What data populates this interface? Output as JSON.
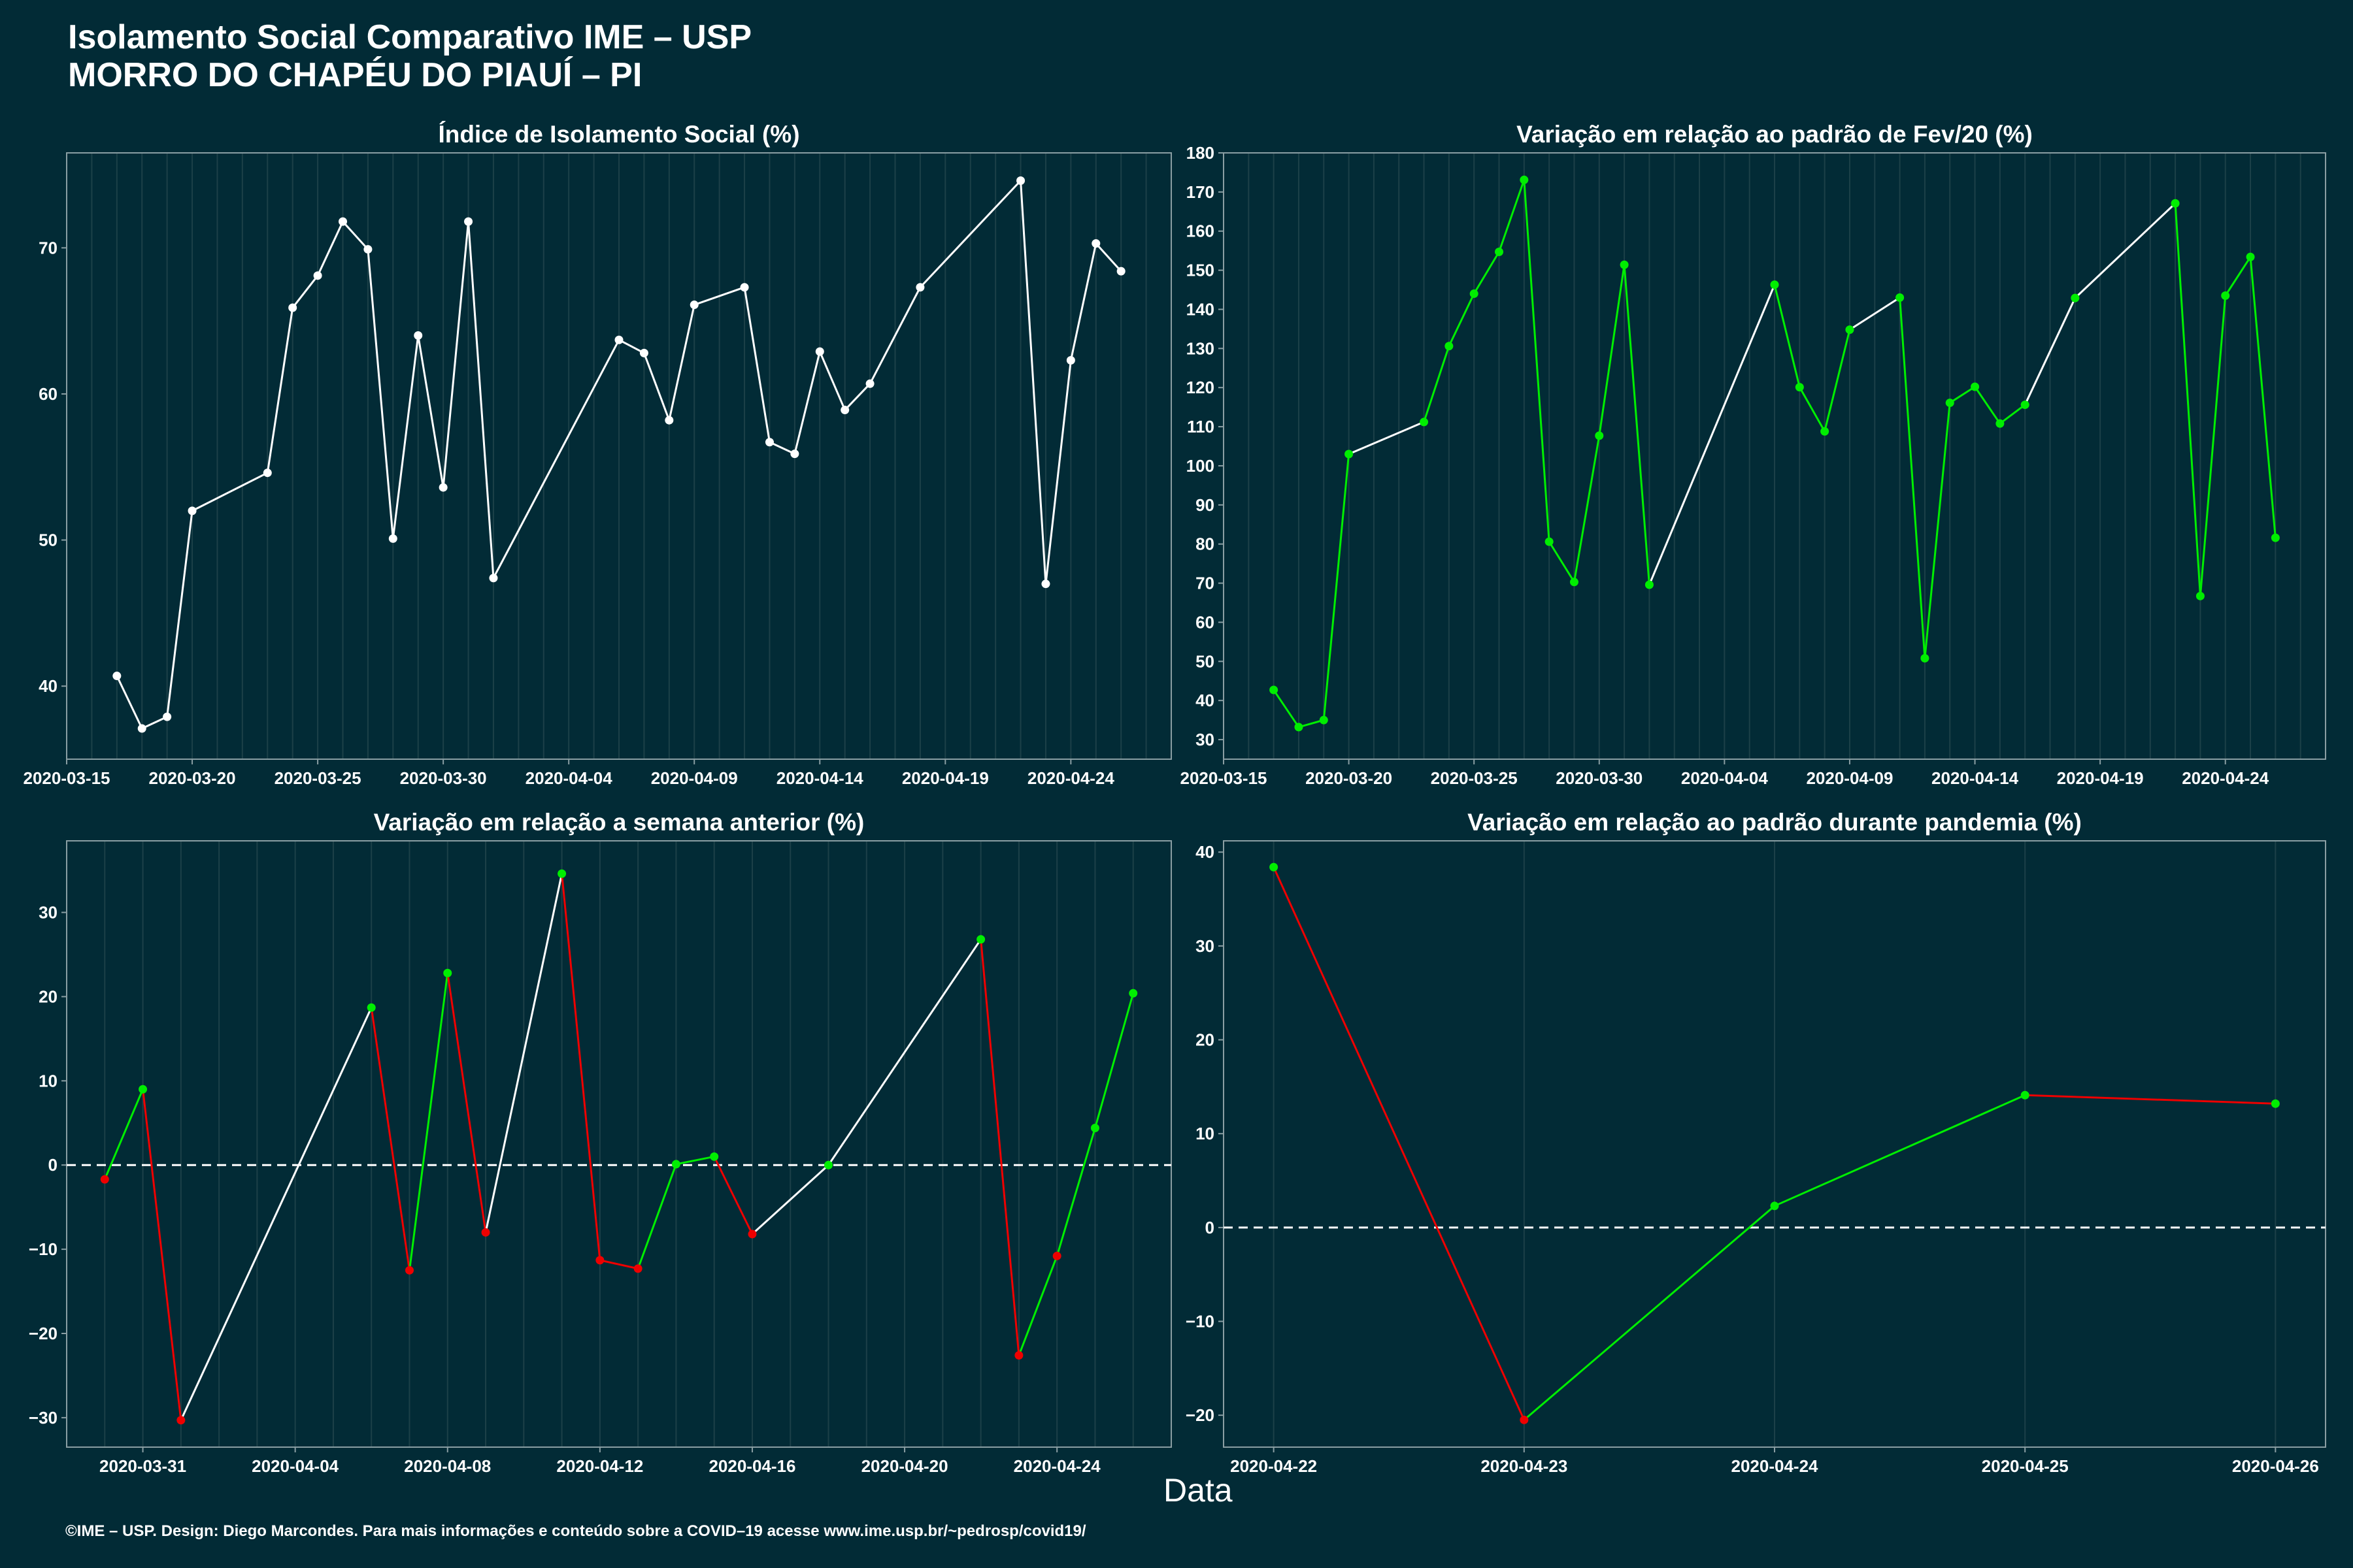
{
  "header": {
    "title_line1": "Isolamento Social Comparativo IME – USP",
    "title_line2": "MORRO DO CHAPÉU DO PIAUÍ – PI"
  },
  "xlabel": "Data",
  "footer": "©IME – USP. Design: Diego Marcondes. Para mais informações e conteúdo sobre a COVID–19 acesse www.ime.usp.br/~pedrosp/covid19/",
  "colors": {
    "background": "#022b36",
    "neutral": "#ffffff",
    "increase": "#00ee00",
    "decrease": "#ee0000",
    "grid": "#1c4048",
    "axis": "#8a9ea3"
  },
  "chart_data": [
    {
      "type": "line",
      "title": "Índice de Isolamento Social (%)",
      "x_type": "date",
      "xlim": [
        "2020-03-15",
        "2020-04-28"
      ],
      "ylim": [
        35,
        76.5
      ],
      "xticks": [
        "2020-03-15",
        "2020-03-20",
        "2020-03-25",
        "2020-03-30",
        "2020-04-04",
        "2020-04-09",
        "2020-04-14",
        "2020-04-19",
        "2020-04-24"
      ],
      "yticks": [
        40,
        50,
        60,
        70
      ],
      "ytick_labels": [
        "40",
        "50",
        "60",
        "70"
      ],
      "zero_line": false,
      "color_mode": "white",
      "points": [
        {
          "x": "2020-03-17",
          "y": 40.7
        },
        {
          "x": "2020-03-18",
          "y": 37.1
        },
        {
          "x": "2020-03-19",
          "y": 37.9
        },
        {
          "x": "2020-03-20",
          "y": 52.0
        },
        {
          "x": "2020-03-23",
          "y": 54.6
        },
        {
          "x": "2020-03-24",
          "y": 65.9
        },
        {
          "x": "2020-03-25",
          "y": 68.1
        },
        {
          "x": "2020-03-26",
          "y": 71.8
        },
        {
          "x": "2020-03-27",
          "y": 69.9
        },
        {
          "x": "2020-03-28",
          "y": 50.1
        },
        {
          "x": "2020-03-29",
          "y": 64.0
        },
        {
          "x": "2020-03-30",
          "y": 53.6
        },
        {
          "x": "2020-03-31",
          "y": 71.8
        },
        {
          "x": "2020-04-01",
          "y": 47.4
        },
        {
          "x": "2020-04-06",
          "y": 63.7
        },
        {
          "x": "2020-04-07",
          "y": 62.8
        },
        {
          "x": "2020-04-08",
          "y": 58.2
        },
        {
          "x": "2020-04-09",
          "y": 66.1
        },
        {
          "x": "2020-04-11",
          "y": 67.3
        },
        {
          "x": "2020-04-12",
          "y": 56.7
        },
        {
          "x": "2020-04-13",
          "y": 55.9
        },
        {
          "x": "2020-04-14",
          "y": 62.9
        },
        {
          "x": "2020-04-15",
          "y": 58.9
        },
        {
          "x": "2020-04-16",
          "y": 60.7
        },
        {
          "x": "2020-04-18",
          "y": 67.3
        },
        {
          "x": "2020-04-22",
          "y": 74.6
        },
        {
          "x": "2020-04-23",
          "y": 47.0
        },
        {
          "x": "2020-04-24",
          "y": 62.3
        },
        {
          "x": "2020-04-25",
          "y": 70.3
        },
        {
          "x": "2020-04-26",
          "y": 68.4
        }
      ]
    },
    {
      "type": "line",
      "title": "Variação em relação ao padrão de Fev/20 (%)",
      "x_type": "date",
      "xlim": [
        "2020-03-15",
        "2020-04-28"
      ],
      "ylim": [
        25,
        180
      ],
      "xticks": [
        "2020-03-15",
        "2020-03-20",
        "2020-03-25",
        "2020-03-30",
        "2020-04-04",
        "2020-04-09",
        "2020-04-14",
        "2020-04-19",
        "2020-04-24"
      ],
      "yticks": [
        30,
        40,
        50,
        60,
        70,
        80,
        90,
        100,
        110,
        120,
        130,
        140,
        150,
        160,
        170,
        180
      ],
      "ytick_labels": [
        "30",
        "40",
        "50",
        "60",
        "70",
        "80",
        "90",
        "100",
        "110",
        "120",
        "130",
        "140",
        "150",
        "160",
        "170",
        "180"
      ],
      "zero_line": false,
      "color_mode": "green_consecutive",
      "points": [
        {
          "x": "2020-03-17",
          "y": 42.7
        },
        {
          "x": "2020-03-18",
          "y": 33.2
        },
        {
          "x": "2020-03-19",
          "y": 35.0
        },
        {
          "x": "2020-03-20",
          "y": 103.0
        },
        {
          "x": "2020-03-23",
          "y": 111.2
        },
        {
          "x": "2020-03-24",
          "y": 130.6
        },
        {
          "x": "2020-03-25",
          "y": 144.0
        },
        {
          "x": "2020-03-26",
          "y": 154.7
        },
        {
          "x": "2020-03-27",
          "y": 173.1
        },
        {
          "x": "2020-03-28",
          "y": 80.6
        },
        {
          "x": "2020-03-29",
          "y": 70.3
        },
        {
          "x": "2020-03-30",
          "y": 107.7
        },
        {
          "x": "2020-03-31",
          "y": 151.4
        },
        {
          "x": "2020-04-01",
          "y": 69.6
        },
        {
          "x": "2020-04-06",
          "y": 146.3
        },
        {
          "x": "2020-04-07",
          "y": 120.1
        },
        {
          "x": "2020-04-08",
          "y": 108.8
        },
        {
          "x": "2020-04-09",
          "y": 134.8
        },
        {
          "x": "2020-04-11",
          "y": 143.0
        },
        {
          "x": "2020-04-12",
          "y": 50.8
        },
        {
          "x": "2020-04-13",
          "y": 116.1
        },
        {
          "x": "2020-04-14",
          "y": 120.2
        },
        {
          "x": "2020-04-15",
          "y": 110.8
        },
        {
          "x": "2020-04-16",
          "y": 115.6
        },
        {
          "x": "2020-04-18",
          "y": 142.9
        },
        {
          "x": "2020-04-22",
          "y": 167.1
        },
        {
          "x": "2020-04-23",
          "y": 66.7
        },
        {
          "x": "2020-04-24",
          "y": 143.5
        },
        {
          "x": "2020-04-25",
          "y": 153.4
        },
        {
          "x": "2020-04-26",
          "y": 81.6
        }
      ]
    },
    {
      "type": "line",
      "title": "Variação em relação a semana anterior (%)",
      "x_type": "date",
      "xlim": [
        "2020-03-29",
        "2020-04-27"
      ],
      "ylim": [
        -33.5,
        38.5
      ],
      "xticks": [
        "2020-03-31",
        "2020-04-04",
        "2020-04-08",
        "2020-04-12",
        "2020-04-16",
        "2020-04-20",
        "2020-04-24"
      ],
      "yticks": [
        -30,
        -20,
        -10,
        0,
        10,
        20,
        30
      ],
      "ytick_labels": [
        "−30",
        "−20",
        "−10",
        "0",
        "10",
        "20",
        "30"
      ],
      "zero_line": true,
      "color_mode": "sign",
      "points": [
        {
          "x": "2020-03-30",
          "y": -1.7
        },
        {
          "x": "2020-03-31",
          "y": 9.0
        },
        {
          "x": "2020-04-01",
          "y": -30.3
        },
        {
          "x": "2020-04-06",
          "y": 18.7
        },
        {
          "x": "2020-04-07",
          "y": -12.5
        },
        {
          "x": "2020-04-08",
          "y": 22.8
        },
        {
          "x": "2020-04-09",
          "y": -8.0
        },
        {
          "x": "2020-04-11",
          "y": 34.6
        },
        {
          "x": "2020-04-12",
          "y": -11.3
        },
        {
          "x": "2020-04-13",
          "y": -12.3
        },
        {
          "x": "2020-04-14",
          "y": 0.1
        },
        {
          "x": "2020-04-15",
          "y": 1.0
        },
        {
          "x": "2020-04-16",
          "y": -8.2
        },
        {
          "x": "2020-04-18",
          "y": 0.0
        },
        {
          "x": "2020-04-22",
          "y": 26.8
        },
        {
          "x": "2020-04-23",
          "y": -22.6
        },
        {
          "x": "2020-04-24",
          "y": -10.8
        },
        {
          "x": "2020-04-25",
          "y": 4.4
        },
        {
          "x": "2020-04-26",
          "y": 20.4
        }
      ]
    },
    {
      "type": "line",
      "title": "Variação em relação ao padrão durante pandemia (%)",
      "x_type": "date",
      "xlim": [
        "2020-04-21.8",
        "2020-04-26.2"
      ],
      "ylim": [
        -23.4,
        41.2
      ],
      "xticks": [
        "2020-04-22",
        "2020-04-23",
        "2020-04-24",
        "2020-04-25",
        "2020-04-26"
      ],
      "yticks": [
        -20,
        -10,
        0,
        10,
        20,
        30,
        40
      ],
      "ytick_labels": [
        "−20",
        "−10",
        "0",
        "10",
        "20",
        "30",
        "40"
      ],
      "zero_line": true,
      "color_mode": "sign",
      "points": [
        {
          "x": "2020-04-22",
          "y": 38.4
        },
        {
          "x": "2020-04-23",
          "y": -20.5
        },
        {
          "x": "2020-04-24",
          "y": 2.3
        },
        {
          "x": "2020-04-25",
          "y": 14.1
        },
        {
          "x": "2020-04-26",
          "y": 13.2
        }
      ]
    }
  ]
}
